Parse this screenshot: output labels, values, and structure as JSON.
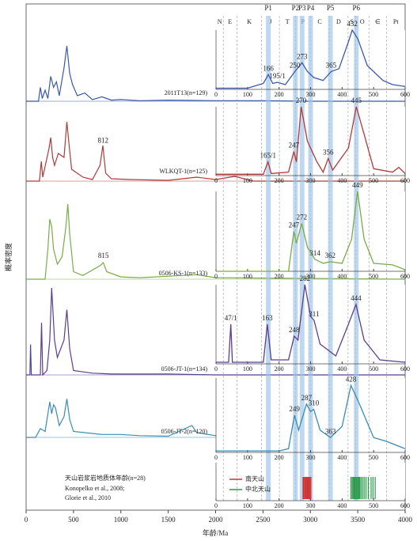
{
  "chart_data": {
    "type": "stacked-density",
    "xlabel": "年龄/Ma",
    "ylabel": "概率密度",
    "xlim": [
      0,
      4000
    ],
    "xticks": [
      0,
      500,
      1000,
      1500,
      2000,
      2500,
      3000,
      3500,
      4000
    ],
    "inset": {
      "xlim": [
        0,
        600
      ],
      "xticks": [
        0,
        100,
        200,
        300,
        400,
        500,
        600
      ],
      "period_boundaries": [
        23,
        66,
        145,
        201,
        252,
        299,
        359,
        419,
        443,
        485,
        541
      ],
      "period_labels": [
        "N",
        "E",
        "K",
        "J",
        "T",
        "P",
        "C",
        "D",
        "S",
        "O",
        "∈",
        "Pt"
      ],
      "bands": [
        {
          "label": "P1",
          "value": 166
        },
        {
          "label": "P2",
          "value": 252
        },
        {
          "label": "P3",
          "value": 273
        },
        {
          "label": "P4",
          "value": 300
        },
        {
          "label": "P5",
          "value": 363
        },
        {
          "label": "P6",
          "value": 445
        }
      ]
    },
    "series": [
      {
        "name": "2011T13(n=129)",
        "color": "#3a5aa8",
        "x": [
          0,
          130,
          150,
          170,
          200,
          230,
          260,
          290,
          320,
          350,
          400,
          430,
          460,
          490,
          540,
          620,
          700,
          800,
          900,
          1000,
          1200,
          1500,
          2000,
          2500,
          3000,
          4000
        ],
        "values": [
          0,
          0,
          25,
          5,
          20,
          5,
          45,
          25,
          35,
          10,
          60,
          100,
          50,
          30,
          10,
          15,
          3,
          8,
          2,
          3,
          1,
          2,
          1,
          1,
          0,
          0
        ],
        "inset_x": [
          0,
          100,
          150,
          166,
          180,
          195,
          220,
          250,
          273,
          290,
          310,
          340,
          365,
          390,
          420,
          432,
          450,
          480,
          500,
          530,
          560,
          600
        ],
        "inset_values": [
          2,
          2,
          10,
          25,
          10,
          12,
          8,
          30,
          45,
          30,
          20,
          15,
          30,
          35,
          80,
          100,
          85,
          40,
          30,
          15,
          8,
          5
        ],
        "peaks": [
          166,
          {
            "value": 195,
            "label": "195/1"
          },
          250,
          273,
          365,
          432
        ]
      },
      {
        "name": "WLKQT-1(n=125)",
        "color": "#b03a3a",
        "x": [
          0,
          140,
          160,
          175,
          240,
          260,
          280,
          300,
          340,
          400,
          430,
          450,
          480,
          600,
          700,
          780,
          810,
          840,
          900,
          1100,
          1500,
          1800,
          2000,
          2200,
          2400,
          4000
        ],
        "values": [
          0,
          0,
          25,
          5,
          40,
          55,
          30,
          20,
          35,
          30,
          75,
          50,
          15,
          5,
          2,
          20,
          45,
          10,
          3,
          2,
          1,
          5,
          2,
          6,
          0,
          0
        ],
        "inset_x": [
          0,
          150,
          165,
          175,
          230,
          247,
          255,
          270,
          290,
          320,
          340,
          356,
          370,
          420,
          445,
          470,
          500,
          560,
          580,
          600
        ],
        "inset_values": [
          2,
          2,
          20,
          3,
          5,
          35,
          20,
          100,
          50,
          20,
          5,
          25,
          8,
          40,
          100,
          60,
          10,
          5,
          12,
          3
        ],
        "peaks": [
          812,
          {
            "value": 165,
            "label": "165/1"
          },
          247,
          270,
          356,
          445
        ]
      },
      {
        "name": "0506-KS-1(n=133)",
        "color": "#7aab4a",
        "x": [
          0,
          200,
          230,
          250,
          270,
          290,
          330,
          380,
          420,
          440,
          460,
          500,
          600,
          780,
          815,
          850,
          1000,
          1200,
          1800,
          2000,
          4000
        ],
        "values": [
          0,
          0,
          40,
          80,
          70,
          40,
          20,
          30,
          70,
          100,
          60,
          10,
          5,
          18,
          22,
          10,
          3,
          2,
          6,
          2,
          0
        ],
        "inset_x": [
          0,
          230,
          247,
          255,
          272,
          290,
          314,
          340,
          362,
          400,
          430,
          449,
          470,
          500,
          560,
          600
        ],
        "inset_values": [
          0,
          0,
          50,
          35,
          60,
          30,
          15,
          10,
          12,
          10,
          40,
          100,
          40,
          10,
          8,
          2
        ],
        "peaks": [
          815,
          247,
          272,
          314,
          362,
          449
        ]
      },
      {
        "name": "0506-JT-1(n=134)",
        "color": "#5a3e8e",
        "x": [
          0,
          40,
          47,
          55,
          150,
          163,
          175,
          220,
          250,
          270,
          285,
          300,
          330,
          400,
          430,
          460,
          500,
          700,
          900,
          1500,
          2000,
          4000
        ],
        "values": [
          0,
          0,
          35,
          0,
          0,
          60,
          0,
          5,
          40,
          100,
          70,
          40,
          20,
          40,
          75,
          30,
          5,
          2,
          1,
          1,
          0,
          0
        ],
        "inset_x": [
          0,
          40,
          47,
          52,
          150,
          163,
          175,
          230,
          248,
          260,
          282,
          300,
          311,
          330,
          380,
          420,
          444,
          470,
          520,
          600
        ],
        "inset_values": [
          2,
          2,
          50,
          2,
          2,
          50,
          5,
          5,
          35,
          30,
          100,
          60,
          55,
          25,
          10,
          50,
          75,
          30,
          5,
          2
        ],
        "peaks": [
          {
            "value": 47,
            "label": "47/1"
          },
          163,
          248,
          282,
          311,
          444
        ]
      },
      {
        "name": "0506-JT-2(n=120)",
        "color": "#3a8cb4",
        "x": [
          0,
          100,
          150,
          200,
          250,
          270,
          290,
          310,
          350,
          400,
          430,
          460,
          500,
          800,
          1000,
          1200,
          1500,
          1750,
          1800,
          2000,
          2500,
          3000,
          4000
        ],
        "values": [
          0,
          0,
          15,
          10,
          60,
          40,
          55,
          50,
          20,
          35,
          65,
          30,
          10,
          5,
          5,
          3,
          2,
          20,
          8,
          3,
          5,
          2,
          0
        ],
        "inset_x": [
          0,
          200,
          230,
          249,
          262,
          287,
          300,
          310,
          330,
          363,
          400,
          428,
          450,
          480,
          500,
          540,
          600
        ],
        "inset_values": [
          2,
          2,
          5,
          50,
          30,
          65,
          55,
          58,
          30,
          20,
          35,
          90,
          70,
          40,
          20,
          15,
          5
        ],
        "peaks": [
          249,
          287,
          310,
          363,
          428
        ]
      }
    ],
    "magmatic": {
      "title": "天山岩浆岩地质体年龄(n=28)",
      "refs": [
        "Konopelko et al., 2008;",
        "Glorie et al., 2010"
      ],
      "groups": [
        {
          "name": "南天山",
          "color": "#d03030",
          "ages": [
            276,
            279,
            282,
            285,
            287,
            290,
            292,
            295,
            298,
            301
          ]
        },
        {
          "name": "中北天山",
          "color": "#2a9a4a",
          "ages": [
            428,
            432,
            435,
            438,
            441,
            444,
            447,
            450,
            453,
            456,
            460,
            465,
            470,
            476,
            483,
            492,
            498,
            505
          ]
        }
      ]
    }
  }
}
